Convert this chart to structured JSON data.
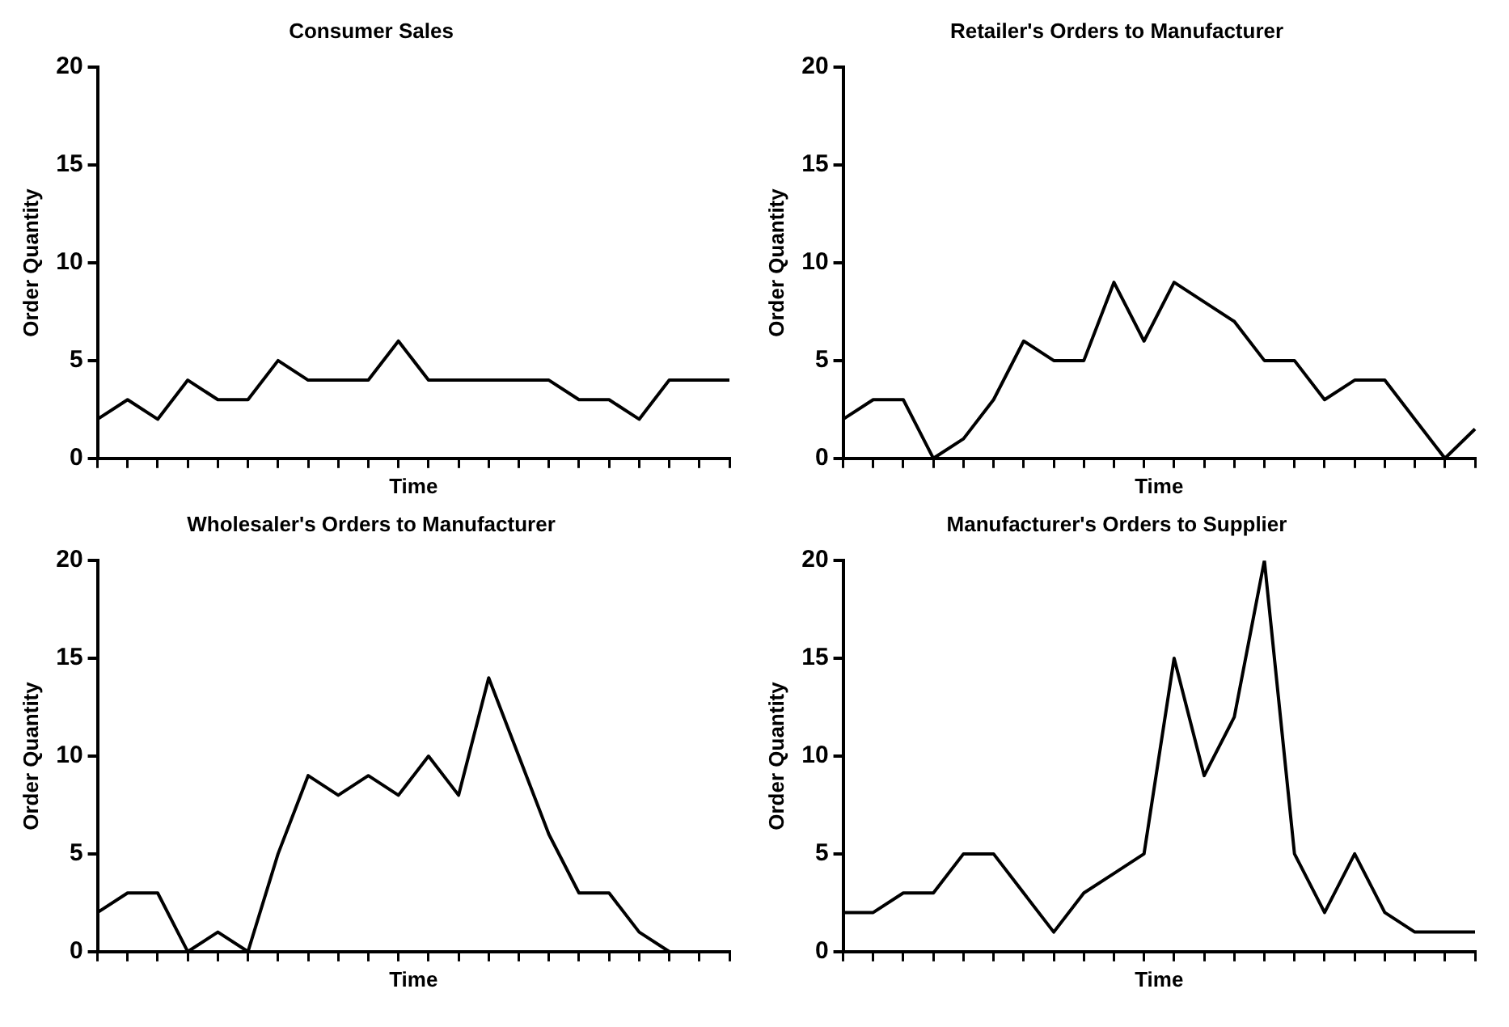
{
  "chart_data": [
    {
      "type": "line",
      "title": "Consumer Sales",
      "xlabel": "Time",
      "ylabel": "Order Quantity",
      "categories": [
        null,
        null,
        null,
        null,
        null,
        null,
        null,
        null,
        null,
        null,
        null,
        null,
        null,
        null,
        null,
        null,
        null,
        null,
        null,
        null,
        null,
        null
      ],
      "series": [
        {
          "color": "#000000",
          "values": [
            2,
            3,
            2,
            4,
            3,
            3,
            5,
            4,
            4,
            4,
            6,
            4,
            4,
            4,
            4,
            4,
            3,
            3,
            2,
            4,
            4,
            4
          ]
        }
      ],
      "ylim": [
        0,
        20
      ],
      "yticks": [
        0,
        5,
        10,
        15,
        20
      ],
      "tick_labels": "y",
      "marker": "none",
      "line_style": "solid",
      "grid": false,
      "legend": false
    },
    {
      "type": "line",
      "title": "Retailer's Orders to Manufacturer",
      "xlabel": "Time",
      "ylabel": "Order Quantity",
      "categories": [
        null,
        null,
        null,
        null,
        null,
        null,
        null,
        null,
        null,
        null,
        null,
        null,
        null,
        null,
        null,
        null,
        null,
        null,
        null,
        null,
        null,
        null
      ],
      "series": [
        {
          "color": "#000000",
          "values": [
            2,
            3,
            3,
            0,
            1,
            3,
            6,
            5,
            5,
            9,
            6,
            9,
            8,
            7,
            5,
            5,
            3,
            4,
            4,
            2,
            0,
            1.5
          ]
        }
      ],
      "ylim": [
        0,
        20
      ],
      "yticks": [
        0,
        5,
        10,
        15,
        20
      ],
      "tick_labels": "y",
      "marker": "none",
      "line_style": "solid",
      "grid": false,
      "legend": false
    },
    {
      "type": "line",
      "title": "Wholesaler's Orders to Manufacturer",
      "xlabel": "Time",
      "ylabel": "Order Quantity",
      "categories": [
        null,
        null,
        null,
        null,
        null,
        null,
        null,
        null,
        null,
        null,
        null,
        null,
        null,
        null,
        null,
        null,
        null,
        null,
        null,
        null,
        null,
        null
      ],
      "series": [
        {
          "color": "#000000",
          "values": [
            2,
            3,
            3,
            0,
            1,
            0,
            5,
            9,
            8,
            9,
            8,
            10,
            8,
            14,
            10,
            6,
            3,
            3,
            1,
            0,
            null,
            null
          ]
        }
      ],
      "ylim": [
        0,
        20
      ],
      "yticks": [
        0,
        5,
        10,
        15,
        20
      ],
      "tick_labels": "y",
      "marker": "none",
      "line_style": "solid",
      "grid": false,
      "legend": false
    },
    {
      "type": "line",
      "title": "Manufacturer's Orders to Supplier",
      "xlabel": "Time",
      "ylabel": "Order Quantity",
      "categories": [
        null,
        null,
        null,
        null,
        null,
        null,
        null,
        null,
        null,
        null,
        null,
        null,
        null,
        null,
        null,
        null,
        null,
        null,
        null,
        null,
        null,
        null
      ],
      "series": [
        {
          "color": "#000000",
          "values": [
            2,
            2,
            3,
            3,
            5,
            5,
            3,
            1,
            3,
            4,
            5,
            15,
            9,
            12,
            20,
            5,
            2,
            5,
            2,
            1,
            1,
            1
          ]
        }
      ],
      "ylim": [
        0,
        20
      ],
      "yticks": [
        0,
        5,
        10,
        15,
        20
      ],
      "tick_labels": "y",
      "marker": "none",
      "line_style": "solid",
      "grid": false,
      "legend": false
    }
  ]
}
